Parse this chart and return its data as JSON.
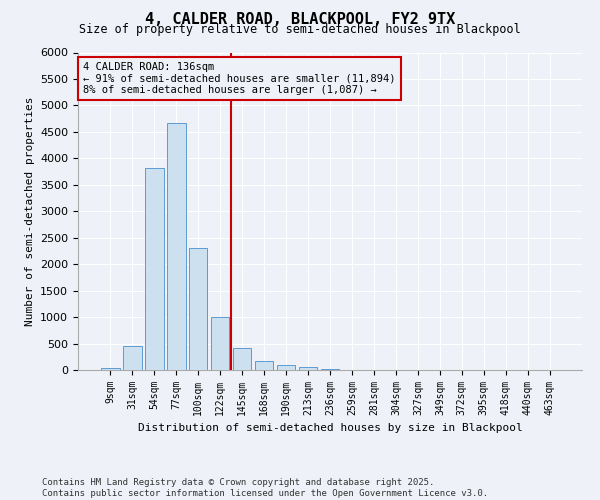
{
  "title": "4, CALDER ROAD, BLACKPOOL, FY2 9TX",
  "subtitle": "Size of property relative to semi-detached houses in Blackpool",
  "xlabel": "Distribution of semi-detached houses by size in Blackpool",
  "ylabel": "Number of semi-detached properties",
  "categories": [
    "9sqm",
    "31sqm",
    "54sqm",
    "77sqm",
    "100sqm",
    "122sqm",
    "145sqm",
    "168sqm",
    "190sqm",
    "213sqm",
    "236sqm",
    "259sqm",
    "281sqm",
    "304sqm",
    "327sqm",
    "349sqm",
    "372sqm",
    "395sqm",
    "418sqm",
    "440sqm",
    "463sqm"
  ],
  "bar_values": [
    30,
    450,
    3820,
    4660,
    2300,
    1000,
    420,
    175,
    90,
    55,
    20,
    5,
    2,
    0,
    0,
    0,
    0,
    0,
    0,
    0,
    0
  ],
  "bar_color": "#cce0f0",
  "bar_edge_color": "#5b9bd5",
  "vline_x": 5.5,
  "vline_color": "#cc0000",
  "annotation_text": "4 CALDER ROAD: 136sqm\n← 91% of semi-detached houses are smaller (11,894)\n8% of semi-detached houses are larger (1,087) →",
  "annotation_box_color": "#cc0000",
  "ylim": [
    0,
    6000
  ],
  "yticks": [
    0,
    500,
    1000,
    1500,
    2000,
    2500,
    3000,
    3500,
    4000,
    4500,
    5000,
    5500,
    6000
  ],
  "footnote": "Contains HM Land Registry data © Crown copyright and database right 2025.\nContains public sector information licensed under the Open Government Licence v3.0.",
  "bg_color": "#eef2f8",
  "grid_color": "#ffffff"
}
